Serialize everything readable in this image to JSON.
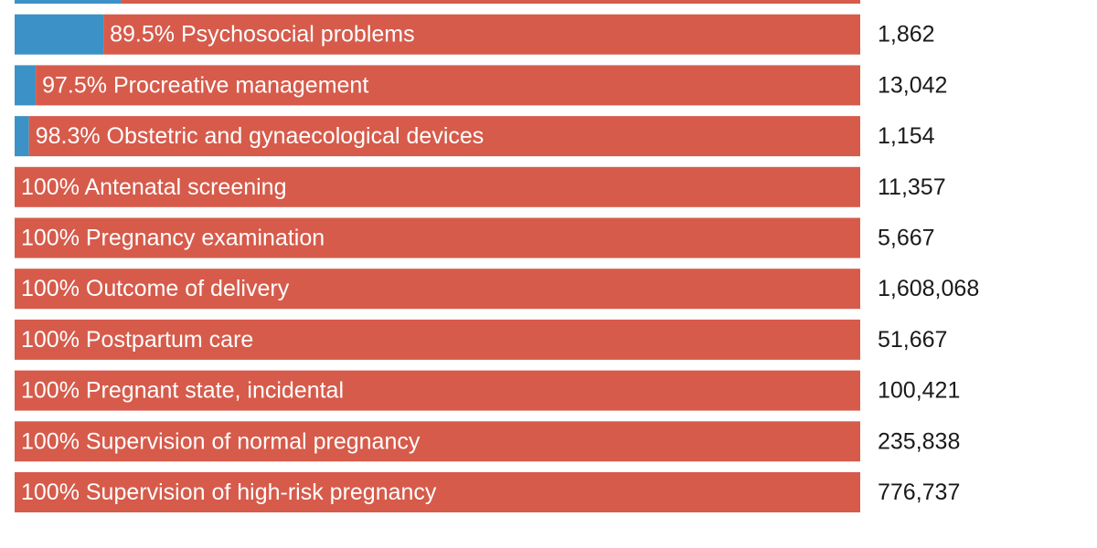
{
  "colors": {
    "female": "#d65b4b",
    "male": "#3c92c6",
    "count_text": "#1a1a1a",
    "bar_text": "#ffffff"
  },
  "chart_data": {
    "type": "bar",
    "orientation": "horizontal",
    "stacked": true,
    "categories": [
      "",
      "Psychosocial problems",
      "Procreative management",
      "Obstetric and gynaecological devices",
      "Antenatal screening",
      "Pregnancy examination",
      "Outcome of delivery",
      "Postpartum care",
      "Pregnant state, incidental",
      "Supervision of normal pregnancy",
      "Supervision of high-risk pregnancy"
    ],
    "bar_labels": [
      "",
      "89.5% Psychosocial problems",
      "97.5% Procreative management",
      "98.3% Obstetric and gynaecological devices",
      "100% Antenatal screening",
      "100% Pregnancy examination",
      "100% Outcome of delivery",
      "100% Postpartum care",
      "100% Pregnant state, incidental",
      "100% Supervision of normal pregnancy",
      "100% Supervision of high-risk pregnancy"
    ],
    "series": [
      {
        "values": [
          12.6,
          10.5,
          2.5,
          1.7,
          0,
          0,
          0,
          0,
          0,
          0,
          0
        ]
      },
      {
        "values": [
          87.4,
          89.5,
          97.5,
          98.3,
          100,
          100,
          100,
          100,
          100,
          100,
          100
        ]
      }
    ],
    "counts": [
      "",
      "1,862",
      "13,042",
      "1,154",
      "11,357",
      "5,667",
      "1,608,068",
      "51,667",
      "100,421",
      "235,838",
      "776,737"
    ],
    "xlim": [
      0,
      100
    ]
  }
}
